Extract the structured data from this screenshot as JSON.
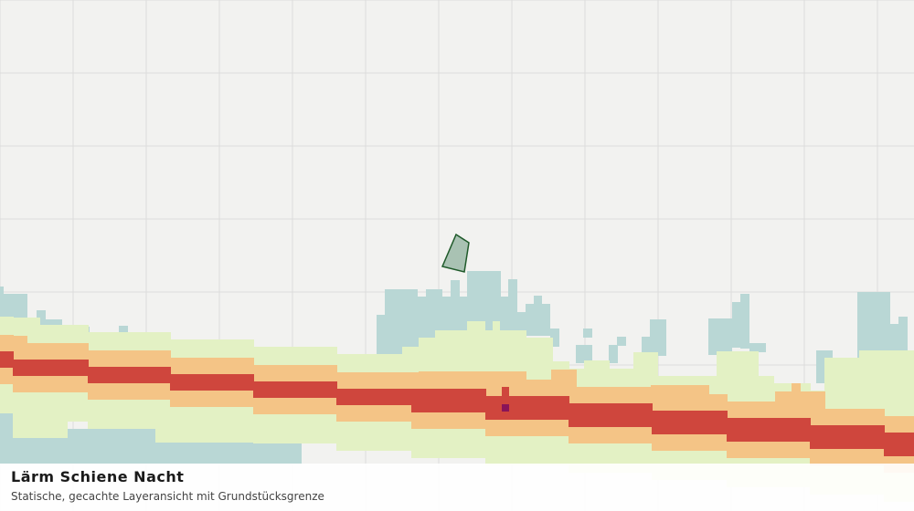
{
  "legend": {
    "title": "Lärm Schiene Nacht",
    "subtitle": "Statische, gecachte Layeransicht mit Grundstücksgrenze"
  }
}
